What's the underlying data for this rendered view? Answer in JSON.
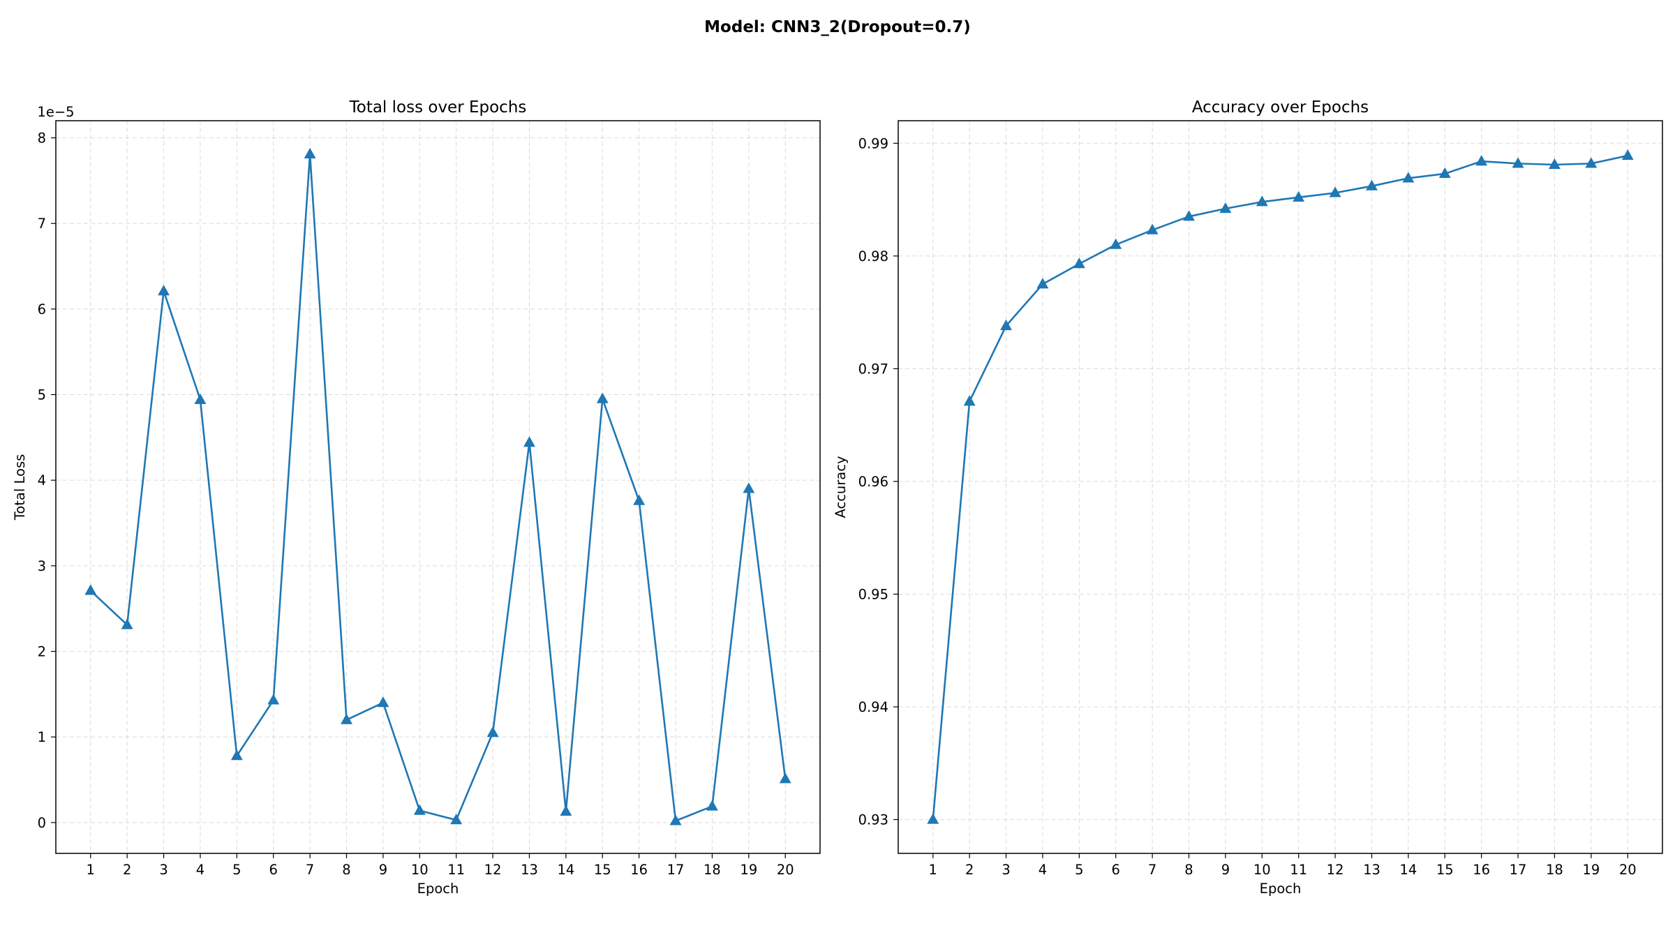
{
  "figure": {
    "suptitle": "Model: CNN3_2(Dropout=0.7)"
  },
  "chart_data": [
    {
      "type": "line",
      "title": "Total loss over Epochs",
      "xlabel": "Epoch",
      "ylabel": "Total Loss",
      "y_offset_label": "1e−5",
      "y_scale_factor": 1e-05,
      "x": [
        1,
        2,
        3,
        4,
        5,
        6,
        7,
        8,
        9,
        10,
        11,
        12,
        13,
        14,
        15,
        16,
        17,
        18,
        19,
        20
      ],
      "x_ticks": [
        "1",
        "2",
        "3",
        "4",
        "5",
        "6",
        "7",
        "8",
        "9",
        "10",
        "11",
        "12",
        "13",
        "14",
        "15",
        "16",
        "17",
        "18",
        "19",
        "20"
      ],
      "xlim": [
        0.05,
        20.95
      ],
      "ylim": [
        -3.6e-06,
        8.2e-05
      ],
      "y_ticks": [
        0,
        1e-05,
        2e-05,
        3e-05,
        4e-05,
        5e-05,
        6e-05,
        7e-05,
        8e-05
      ],
      "y_tick_labels": [
        "0",
        "1",
        "2",
        "3",
        "4",
        "5",
        "6",
        "7",
        "8"
      ],
      "grid": true,
      "marker": "triangle",
      "series": [
        {
          "color": "#1f77b4",
          "values": [
            2.71e-05,
            2.31e-05,
            6.21e-05,
            4.94e-05,
            7.8e-06,
            1.43e-05,
            7.81e-05,
            1.2e-05,
            1.4e-05,
            1.4e-06,
            3e-07,
            1.05e-05,
            4.44e-05,
            1.3e-06,
            4.95e-05,
            3.76e-05,
            2e-07,
            1.9e-06,
            3.9e-05,
            5.1e-06
          ]
        }
      ]
    },
    {
      "type": "line",
      "title": "Accuracy over Epochs",
      "xlabel": "Epoch",
      "ylabel": "Accuracy",
      "x": [
        1,
        2,
        3,
        4,
        5,
        6,
        7,
        8,
        9,
        10,
        11,
        12,
        13,
        14,
        15,
        16,
        17,
        18,
        19,
        20
      ],
      "x_ticks": [
        "1",
        "2",
        "3",
        "4",
        "5",
        "6",
        "7",
        "8",
        "9",
        "10",
        "11",
        "12",
        "13",
        "14",
        "15",
        "16",
        "17",
        "18",
        "19",
        "20"
      ],
      "xlim": [
        0.05,
        20.95
      ],
      "ylim": [
        0.927,
        0.992
      ],
      "y_ticks": [
        0.93,
        0.94,
        0.95,
        0.96,
        0.97,
        0.98,
        0.99
      ],
      "y_tick_labels": [
        "0.93",
        "0.94",
        "0.95",
        "0.96",
        "0.97",
        "0.98",
        "0.99"
      ],
      "grid": true,
      "marker": "triangle",
      "series": [
        {
          "color": "#1f77b4",
          "values": [
            0.93,
            0.9671,
            0.9738,
            0.9775,
            0.9793,
            0.981,
            0.9823,
            0.9835,
            0.9842,
            0.9848,
            0.9852,
            0.9856,
            0.9862,
            0.9869,
            0.9873,
            0.9884,
            0.9882,
            0.9881,
            0.9882,
            0.9889
          ]
        }
      ]
    }
  ]
}
